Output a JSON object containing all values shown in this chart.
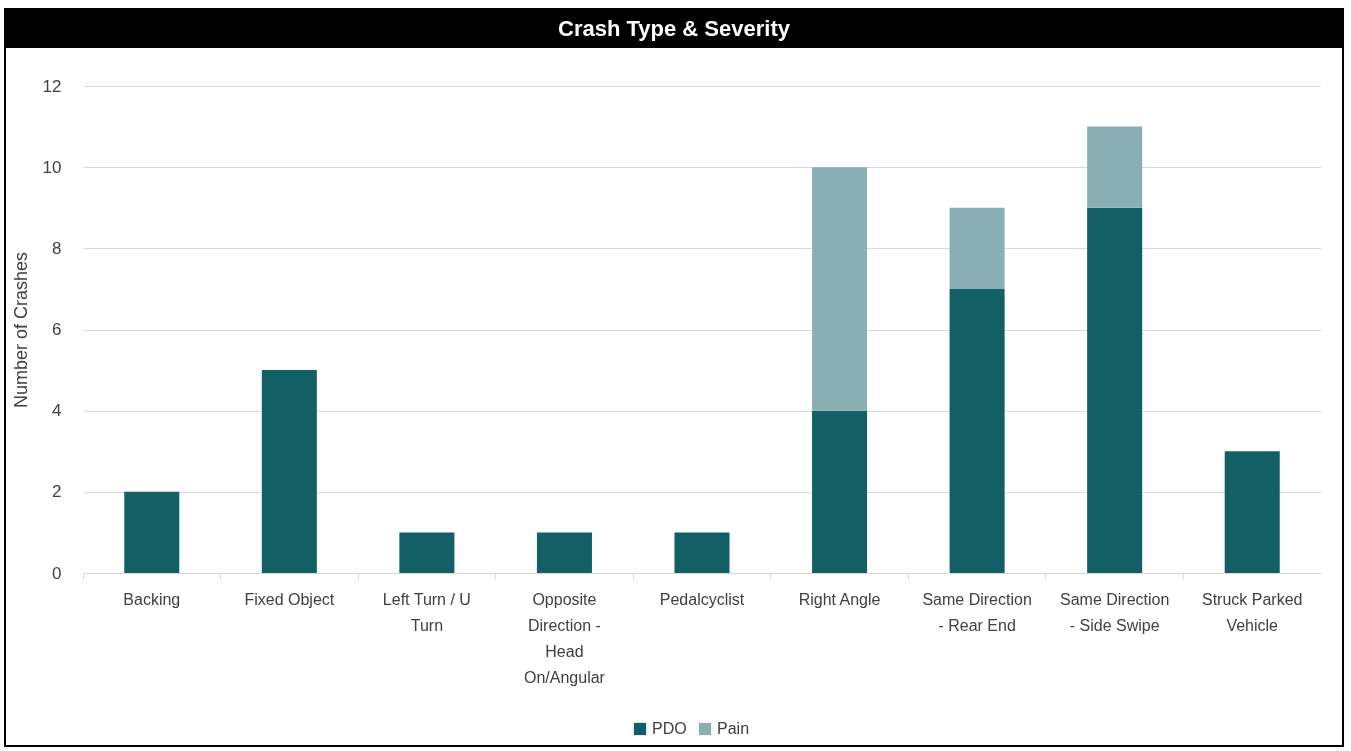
{
  "chart_data": {
    "type": "bar",
    "title": "Crash Type & Severity",
    "ylabel": "Number of Crashes",
    "categories": [
      "Backing",
      "Fixed Object",
      "Left Turn / U Turn",
      "Opposite Direction - Head On/Angular",
      "Pedalcyclist",
      "Right Angle",
      "Same Direction - Rear End",
      "Same Direction - Side Swipe",
      "Struck Parked Vehicle"
    ],
    "series": [
      {
        "name": "PDO",
        "color": "#135f66",
        "values": [
          2,
          5,
          1,
          1,
          1,
          4,
          7,
          9,
          3
        ]
      },
      {
        "name": "Pain",
        "color": "#8aafb3",
        "values": [
          null,
          null,
          null,
          null,
          null,
          6,
          2,
          2,
          null
        ]
      }
    ],
    "stacked": true,
    "ylim": [
      0,
      12
    ],
    "yticks": [
      0,
      2,
      4,
      6,
      8,
      10,
      12
    ],
    "grid": "y",
    "legend": "bottom"
  }
}
